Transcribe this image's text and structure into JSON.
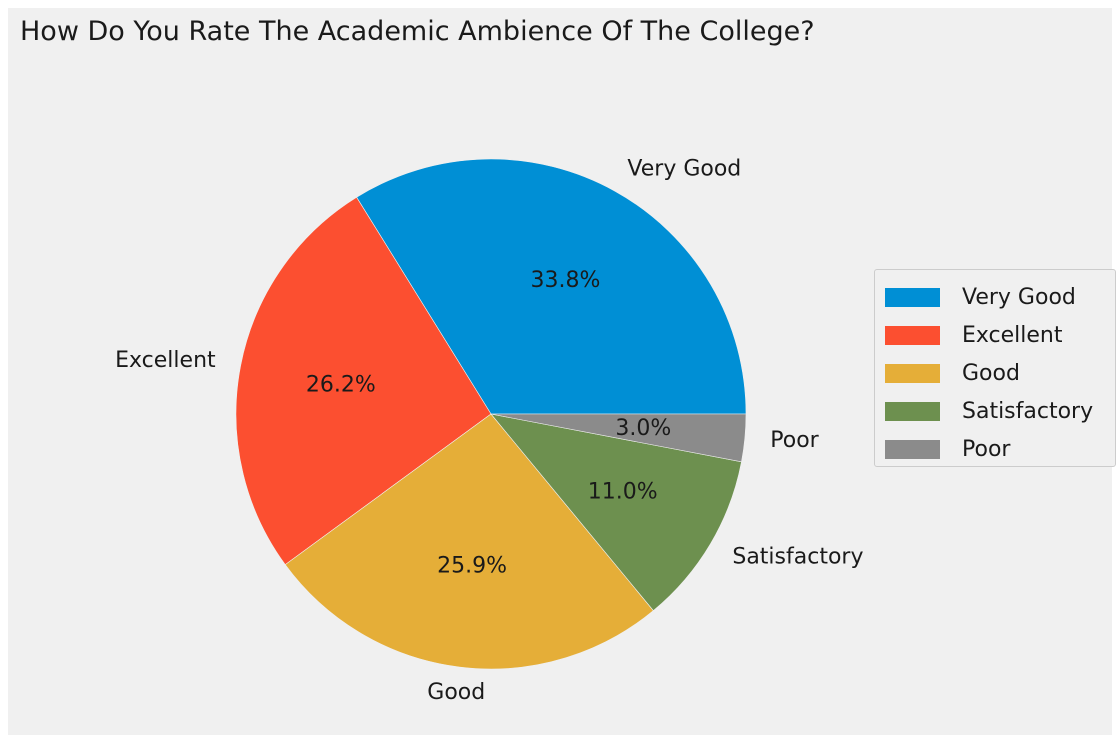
{
  "chart_data": {
    "type": "pie",
    "title": "How Do You Rate The Academic Ambience Of The College?",
    "slices": [
      {
        "label": "Very Good",
        "value": 33.8,
        "pct_label": "33.8%",
        "color": "#008fd5"
      },
      {
        "label": "Excellent",
        "value": 26.2,
        "pct_label": "26.2%",
        "color": "#fc4f30"
      },
      {
        "label": "Good",
        "value": 25.9,
        "pct_label": "25.9%",
        "color": "#e5ae38"
      },
      {
        "label": "Satisfactory",
        "value": 11.0,
        "pct_label": "11.0%",
        "color": "#6d904f"
      },
      {
        "label": "Poor",
        "value": 3.0,
        "pct_label": "3.0%",
        "color": "#8b8b8b"
      }
    ],
    "start_angle": 0,
    "direction": "counterclockwise",
    "legend": {
      "position": "right",
      "entries": [
        "Very Good",
        "Excellent",
        "Good",
        "Satisfactory",
        "Poor"
      ]
    }
  }
}
